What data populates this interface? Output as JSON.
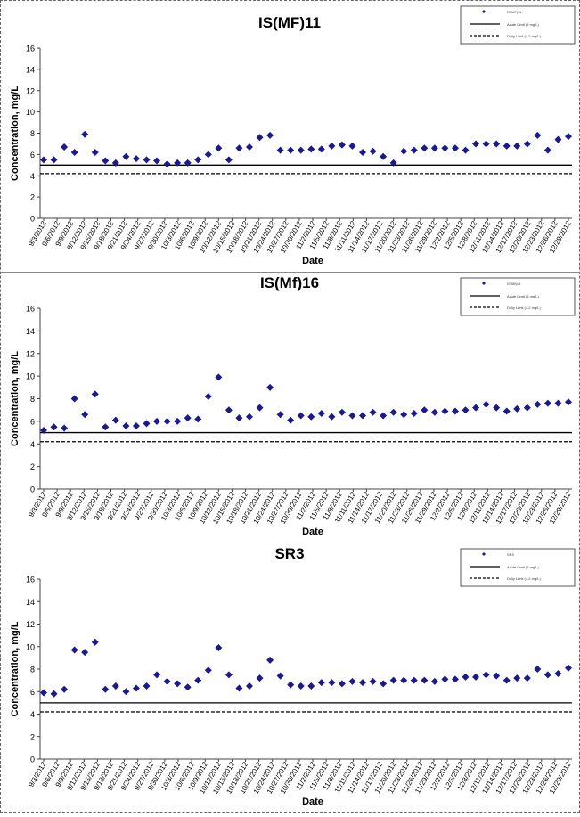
{
  "chart_data": [
    {
      "type": "scatter",
      "title": "IS(MF)11",
      "xlabel": "Date",
      "ylabel": "Concentration, mg/L",
      "ylim": [
        0,
        16
      ],
      "yticks": [
        0,
        2,
        4,
        6,
        8,
        10,
        12,
        14,
        16
      ],
      "x_tick_labels": [
        "9/3/2012",
        "9/6/2012",
        "9/9/2012",
        "9/12/2012",
        "9/15/2012",
        "9/18/2012",
        "9/21/2012",
        "9/24/2012",
        "9/27/2012",
        "9/30/2012",
        "10/3/2012",
        "10/6/2012",
        "10/9/2012",
        "10/12/2012",
        "10/15/2012",
        "10/18/2012",
        "10/21/2012",
        "10/24/2012",
        "10/27/2012",
        "10/30/2012",
        "11/2/2012",
        "11/5/2012",
        "11/8/2012",
        "11/11/2012",
        "11/14/2012",
        "11/17/2012",
        "11/20/2012",
        "11/23/2012",
        "11/26/2012",
        "11/29/2012",
        "12/2/2012",
        "12/5/2012",
        "12/8/2012",
        "12/11/2012",
        "12/14/2012",
        "12/17/2012",
        "12/20/2012",
        "12/23/2012",
        "12/26/2012",
        "12/29/2012"
      ],
      "legend": {
        "placement": "top-right",
        "entries": [
          "IS(MF)11",
          "Acute Limit (5 mg/L)",
          "Daily Limit (4.2 mg/L)"
        ]
      },
      "reference_lines": [
        {
          "value": 5.0,
          "style": "solid"
        },
        {
          "value": 4.2,
          "style": "dashed"
        }
      ],
      "series": [
        {
          "marker": "diamond",
          "color": "#1a1a8c",
          "points": [
            [
              0,
              5.5
            ],
            [
              1,
              5.5
            ],
            [
              2,
              6.7
            ],
            [
              3,
              6.2
            ],
            [
              4,
              7.9
            ],
            [
              5,
              6.2
            ],
            [
              6,
              5.4
            ],
            [
              7,
              5.2
            ],
            [
              8,
              5.8
            ],
            [
              9,
              5.6
            ],
            [
              10,
              5.5
            ],
            [
              11,
              5.4
            ],
            [
              12,
              5.1
            ],
            [
              13,
              5.2
            ],
            [
              14,
              5.2
            ],
            [
              15,
              5.5
            ],
            [
              16,
              6.0
            ],
            [
              17,
              6.6
            ],
            [
              18,
              5.5
            ],
            [
              19,
              6.6
            ],
            [
              20,
              6.7
            ],
            [
              21,
              7.6
            ],
            [
              22,
              7.8
            ],
            [
              23,
              6.4
            ],
            [
              24,
              6.4
            ],
            [
              25,
              6.4
            ],
            [
              26,
              6.5
            ],
            [
              27,
              6.5
            ],
            [
              28,
              6.8
            ],
            [
              29,
              6.9
            ],
            [
              30,
              6.8
            ],
            [
              31,
              6.2
            ],
            [
              32,
              6.3
            ],
            [
              33,
              5.8
            ],
            [
              34,
              5.2
            ],
            [
              35,
              6.3
            ],
            [
              36,
              6.4
            ],
            [
              37,
              6.6
            ],
            [
              38,
              6.6
            ],
            [
              39,
              6.6
            ],
            [
              40,
              6.6
            ],
            [
              41,
              6.4
            ],
            [
              42,
              7.0
            ],
            [
              43,
              7.0
            ],
            [
              44,
              7.0
            ],
            [
              45,
              6.8
            ],
            [
              46,
              6.8
            ],
            [
              47,
              7.0
            ],
            [
              48,
              7.8
            ],
            [
              49,
              6.4
            ],
            [
              50,
              7.4
            ],
            [
              51,
              7.7
            ]
          ]
        }
      ]
    },
    {
      "type": "scatter",
      "title": "IS(Mf)16",
      "xlabel": "Date",
      "ylabel": "Concentration, mg/L",
      "ylim": [
        0,
        16
      ],
      "yticks": [
        0,
        2,
        4,
        6,
        8,
        10,
        12,
        14,
        16
      ],
      "x_tick_labels": [
        "9/3/2012",
        "9/6/2012",
        "9/9/2012",
        "9/12/2012",
        "9/15/2012",
        "9/18/2012",
        "9/21/2012",
        "9/24/2012",
        "9/27/2012",
        "9/30/2012",
        "10/3/2012",
        "10/6/2012",
        "10/9/2012",
        "10/12/2012",
        "10/15/2012",
        "10/18/2012",
        "10/21/2012",
        "10/24/2012",
        "10/27/2012",
        "10/30/2012",
        "11/2/2012",
        "11/5/2012",
        "11/8/2012",
        "11/11/2012",
        "11/14/2012",
        "11/17/2012",
        "11/20/2012",
        "11/23/2012",
        "11/26/2012",
        "11/29/2012",
        "12/2/2012",
        "12/5/2012",
        "12/8/2012",
        "12/11/2012",
        "12/14/2012",
        "12/17/2012",
        "12/20/2012",
        "12/23/2012",
        "12/26/2012",
        "12/29/2012"
      ],
      "legend": {
        "placement": "top-right",
        "entries": [
          "IS(Mf)16",
          "Acute Limit (5 mg/L)",
          "Daily Limit (4.2 mg/L)"
        ]
      },
      "reference_lines": [
        {
          "value": 5.0,
          "style": "solid"
        },
        {
          "value": 4.2,
          "style": "dashed"
        }
      ],
      "series": [
        {
          "marker": "diamond",
          "color": "#1a1a8c",
          "points": [
            [
              0,
              5.2
            ],
            [
              1,
              5.5
            ],
            [
              2,
              5.4
            ],
            [
              3,
              8.0
            ],
            [
              4,
              6.6
            ],
            [
              5,
              8.4
            ],
            [
              6,
              5.5
            ],
            [
              7,
              6.1
            ],
            [
              8,
              5.6
            ],
            [
              9,
              5.6
            ],
            [
              10,
              5.8
            ],
            [
              11,
              6.0
            ],
            [
              12,
              6.0
            ],
            [
              13,
              6.0
            ],
            [
              14,
              6.3
            ],
            [
              15,
              6.2
            ],
            [
              16,
              8.2
            ],
            [
              17,
              9.9
            ],
            [
              18,
              7.0
            ],
            [
              19,
              6.3
            ],
            [
              20,
              6.4
            ],
            [
              21,
              7.2
            ],
            [
              22,
              9.0
            ],
            [
              23,
              6.6
            ],
            [
              24,
              6.1
            ],
            [
              25,
              6.5
            ],
            [
              26,
              6.4
            ],
            [
              27,
              6.7
            ],
            [
              28,
              6.4
            ],
            [
              29,
              6.8
            ],
            [
              30,
              6.5
            ],
            [
              31,
              6.5
            ],
            [
              32,
              6.8
            ],
            [
              33,
              6.5
            ],
            [
              34,
              6.8
            ],
            [
              35,
              6.6
            ],
            [
              36,
              6.7
            ],
            [
              37,
              7.0
            ],
            [
              38,
              6.8
            ],
            [
              39,
              6.9
            ],
            [
              40,
              6.9
            ],
            [
              41,
              7.0
            ],
            [
              42,
              7.2
            ],
            [
              43,
              7.5
            ],
            [
              44,
              7.2
            ],
            [
              45,
              6.9
            ],
            [
              46,
              7.1
            ],
            [
              47,
              7.2
            ],
            [
              48,
              7.5
            ],
            [
              49,
              7.6
            ],
            [
              50,
              7.6
            ],
            [
              51,
              7.7
            ]
          ]
        }
      ]
    },
    {
      "type": "scatter",
      "title": "SR3",
      "xlabel": "Date",
      "ylabel": "Concentration, mg/L",
      "ylim": [
        0,
        16
      ],
      "yticks": [
        0,
        2,
        4,
        6,
        8,
        10,
        12,
        14,
        16
      ],
      "x_tick_labels": [
        "9/3/2012",
        "9/6/2012",
        "9/9/2012",
        "9/12/2012",
        "9/15/2012",
        "9/18/2012",
        "9/21/2012",
        "9/24/2012",
        "9/27/2012",
        "9/30/2012",
        "10/3/2012",
        "10/6/2012",
        "10/9/2012",
        "10/12/2012",
        "10/15/2012",
        "10/18/2012",
        "10/21/2012",
        "10/24/2012",
        "10/27/2012",
        "10/30/2012",
        "11/2/2012",
        "11/5/2012",
        "11/8/2012",
        "11/11/2012",
        "11/14/2012",
        "11/17/2012",
        "11/20/2012",
        "11/23/2012",
        "11/26/2012",
        "11/29/2012",
        "12/2/2012",
        "12/5/2012",
        "12/8/2012",
        "12/11/2012",
        "12/14/2012",
        "12/17/2012",
        "12/20/2012",
        "12/23/2012",
        "12/26/2012",
        "12/29/2012"
      ],
      "legend": {
        "placement": "top-right",
        "entries": [
          "SR3",
          "Acute Limit (5 mg/L)",
          "Daily Limit (4.2 mg/L)"
        ]
      },
      "reference_lines": [
        {
          "value": 5.0,
          "style": "solid"
        },
        {
          "value": 4.2,
          "style": "dashed"
        }
      ],
      "series": [
        {
          "marker": "diamond",
          "color": "#1a1a8c",
          "points": [
            [
              0,
              5.9
            ],
            [
              1,
              5.8
            ],
            [
              2,
              6.2
            ],
            [
              3,
              9.7
            ],
            [
              4,
              9.5
            ],
            [
              5,
              10.4
            ],
            [
              6,
              6.2
            ],
            [
              7,
              6.5
            ],
            [
              8,
              6.0
            ],
            [
              9,
              6.3
            ],
            [
              10,
              6.5
            ],
            [
              11,
              7.5
            ],
            [
              12,
              6.9
            ],
            [
              13,
              6.7
            ],
            [
              14,
              6.4
            ],
            [
              15,
              7.0
            ],
            [
              16,
              7.9
            ],
            [
              17,
              9.9
            ],
            [
              18,
              7.5
            ],
            [
              19,
              6.3
            ],
            [
              20,
              6.5
            ],
            [
              21,
              7.2
            ],
            [
              22,
              8.8
            ],
            [
              23,
              7.4
            ],
            [
              24,
              6.6
            ],
            [
              25,
              6.5
            ],
            [
              26,
              6.5
            ],
            [
              27,
              6.8
            ],
            [
              28,
              6.8
            ],
            [
              29,
              6.7
            ],
            [
              30,
              6.9
            ],
            [
              31,
              6.8
            ],
            [
              32,
              6.9
            ],
            [
              33,
              6.7
            ],
            [
              34,
              7.0
            ],
            [
              35,
              7.0
            ],
            [
              36,
              7.0
            ],
            [
              37,
              7.0
            ],
            [
              38,
              6.9
            ],
            [
              39,
              7.1
            ],
            [
              40,
              7.1
            ],
            [
              41,
              7.3
            ],
            [
              42,
              7.3
            ],
            [
              43,
              7.5
            ],
            [
              44,
              7.4
            ],
            [
              45,
              7.0
            ],
            [
              46,
              7.2
            ],
            [
              47,
              7.2
            ],
            [
              48,
              8.0
            ],
            [
              49,
              7.5
            ],
            [
              50,
              7.6
            ],
            [
              51,
              8.1
            ]
          ]
        }
      ]
    }
  ]
}
